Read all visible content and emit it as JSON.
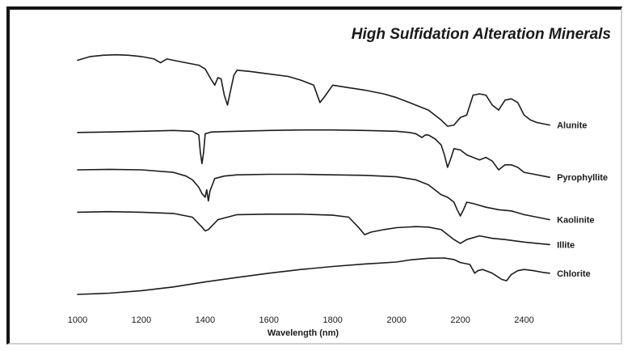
{
  "chart_data": {
    "type": "line",
    "title": "High Sulfidation Alteration Minerals",
    "xlabel": "Wavelength (nm)",
    "ylabel": "",
    "xlim": [
      1000,
      2500
    ],
    "xticks": [
      1000,
      1200,
      1400,
      1600,
      1800,
      2000,
      2200,
      2400
    ],
    "grid": false,
    "legend": "labels at right end of each series",
    "series": [
      {
        "name": "Alunite",
        "points": [
          [
            1000,
            0.94
          ],
          [
            1040,
            0.955
          ],
          [
            1080,
            0.96
          ],
          [
            1120,
            0.962
          ],
          [
            1160,
            0.96
          ],
          [
            1200,
            0.955
          ],
          [
            1240,
            0.945
          ],
          [
            1260,
            0.93
          ],
          [
            1280,
            0.945
          ],
          [
            1300,
            0.94
          ],
          [
            1340,
            0.93
          ],
          [
            1380,
            0.92
          ],
          [
            1400,
            0.905
          ],
          [
            1420,
            0.86
          ],
          [
            1430,
            0.84
          ],
          [
            1440,
            0.87
          ],
          [
            1450,
            0.865
          ],
          [
            1460,
            0.8
          ],
          [
            1470,
            0.76
          ],
          [
            1480,
            0.82
          ],
          [
            1490,
            0.88
          ],
          [
            1500,
            0.9
          ],
          [
            1540,
            0.895
          ],
          [
            1600,
            0.885
          ],
          [
            1660,
            0.875
          ],
          [
            1700,
            0.86
          ],
          [
            1740,
            0.84
          ],
          [
            1760,
            0.77
          ],
          [
            1775,
            0.795
          ],
          [
            1800,
            0.84
          ],
          [
            1850,
            0.83
          ],
          [
            1900,
            0.82
          ],
          [
            1960,
            0.805
          ],
          [
            2000,
            0.79
          ],
          [
            2040,
            0.77
          ],
          [
            2080,
            0.75
          ],
          [
            2100,
            0.74
          ],
          [
            2120,
            0.72
          ],
          [
            2140,
            0.7
          ],
          [
            2160,
            0.675
          ],
          [
            2180,
            0.68
          ],
          [
            2200,
            0.71
          ],
          [
            2220,
            0.72
          ],
          [
            2240,
            0.8
          ],
          [
            2260,
            0.805
          ],
          [
            2280,
            0.8
          ],
          [
            2300,
            0.76
          ],
          [
            2320,
            0.74
          ],
          [
            2340,
            0.78
          ],
          [
            2360,
            0.785
          ],
          [
            2380,
            0.77
          ],
          [
            2400,
            0.72
          ],
          [
            2420,
            0.7
          ],
          [
            2440,
            0.69
          ],
          [
            2480,
            0.68
          ]
        ]
      },
      {
        "name": "Pyrophyllite",
        "points": [
          [
            1000,
            0.65
          ],
          [
            1100,
            0.652
          ],
          [
            1200,
            0.655
          ],
          [
            1300,
            0.658
          ],
          [
            1360,
            0.655
          ],
          [
            1380,
            0.64
          ],
          [
            1385,
            0.57
          ],
          [
            1390,
            0.525
          ],
          [
            1395,
            0.57
          ],
          [
            1400,
            0.645
          ],
          [
            1420,
            0.652
          ],
          [
            1500,
            0.655
          ],
          [
            1600,
            0.658
          ],
          [
            1700,
            0.66
          ],
          [
            1800,
            0.66
          ],
          [
            1900,
            0.658
          ],
          [
            2000,
            0.655
          ],
          [
            2040,
            0.65
          ],
          [
            2060,
            0.645
          ],
          [
            2080,
            0.63
          ],
          [
            2090,
            0.64
          ],
          [
            2100,
            0.64
          ],
          [
            2120,
            0.625
          ],
          [
            2140,
            0.6
          ],
          [
            2150,
            0.56
          ],
          [
            2160,
            0.51
          ],
          [
            2170,
            0.545
          ],
          [
            2180,
            0.585
          ],
          [
            2200,
            0.58
          ],
          [
            2220,
            0.56
          ],
          [
            2240,
            0.55
          ],
          [
            2260,
            0.54
          ],
          [
            2280,
            0.55
          ],
          [
            2300,
            0.535
          ],
          [
            2320,
            0.5
          ],
          [
            2340,
            0.52
          ],
          [
            2360,
            0.52
          ],
          [
            2380,
            0.51
          ],
          [
            2400,
            0.49
          ],
          [
            2420,
            0.485
          ],
          [
            2480,
            0.47
          ]
        ]
      },
      {
        "name": "Kaolinite",
        "points": [
          [
            1000,
            0.5
          ],
          [
            1100,
            0.502
          ],
          [
            1200,
            0.5
          ],
          [
            1300,
            0.49
          ],
          [
            1340,
            0.475
          ],
          [
            1360,
            0.46
          ],
          [
            1380,
            0.43
          ],
          [
            1390,
            0.405
          ],
          [
            1400,
            0.39
          ],
          [
            1405,
            0.42
          ],
          [
            1410,
            0.375
          ],
          [
            1415,
            0.415
          ],
          [
            1430,
            0.465
          ],
          [
            1460,
            0.475
          ],
          [
            1500,
            0.48
          ],
          [
            1600,
            0.482
          ],
          [
            1700,
            0.482
          ],
          [
            1800,
            0.48
          ],
          [
            1900,
            0.478
          ],
          [
            2000,
            0.472
          ],
          [
            2060,
            0.46
          ],
          [
            2100,
            0.44
          ],
          [
            2140,
            0.4
          ],
          [
            2160,
            0.39
          ],
          [
            2180,
            0.37
          ],
          [
            2190,
            0.34
          ],
          [
            2200,
            0.315
          ],
          [
            2210,
            0.34
          ],
          [
            2220,
            0.37
          ],
          [
            2240,
            0.365
          ],
          [
            2280,
            0.35
          ],
          [
            2320,
            0.34
          ],
          [
            2360,
            0.335
          ],
          [
            2400,
            0.32
          ],
          [
            2440,
            0.31
          ],
          [
            2480,
            0.3
          ]
        ]
      },
      {
        "name": "Illite",
        "points": [
          [
            1000,
            0.33
          ],
          [
            1100,
            0.332
          ],
          [
            1200,
            0.33
          ],
          [
            1300,
            0.325
          ],
          [
            1360,
            0.31
          ],
          [
            1390,
            0.27
          ],
          [
            1400,
            0.255
          ],
          [
            1410,
            0.26
          ],
          [
            1440,
            0.3
          ],
          [
            1500,
            0.32
          ],
          [
            1600,
            0.322
          ],
          [
            1700,
            0.322
          ],
          [
            1800,
            0.318
          ],
          [
            1850,
            0.31
          ],
          [
            1880,
            0.27
          ],
          [
            1900,
            0.24
          ],
          [
            1920,
            0.25
          ],
          [
            1960,
            0.26
          ],
          [
            2000,
            0.268
          ],
          [
            2060,
            0.272
          ],
          [
            2100,
            0.27
          ],
          [
            2140,
            0.26
          ],
          [
            2180,
            0.22
          ],
          [
            2200,
            0.205
          ],
          [
            2220,
            0.22
          ],
          [
            2260,
            0.235
          ],
          [
            2300,
            0.225
          ],
          [
            2340,
            0.22
          ],
          [
            2400,
            0.21
          ],
          [
            2440,
            0.205
          ],
          [
            2480,
            0.2
          ]
        ]
      },
      {
        "name": "Chlorite",
        "points": [
          [
            1000,
            0.0
          ],
          [
            1100,
            0.005
          ],
          [
            1200,
            0.015
          ],
          [
            1300,
            0.03
          ],
          [
            1400,
            0.05
          ],
          [
            1500,
            0.068
          ],
          [
            1600,
            0.085
          ],
          [
            1700,
            0.1
          ],
          [
            1800,
            0.112
          ],
          [
            1900,
            0.122
          ],
          [
            2000,
            0.13
          ],
          [
            2040,
            0.138
          ],
          [
            2100,
            0.145
          ],
          [
            2150,
            0.146
          ],
          [
            2180,
            0.14
          ],
          [
            2200,
            0.128
          ],
          [
            2230,
            0.12
          ],
          [
            2245,
            0.085
          ],
          [
            2255,
            0.095
          ],
          [
            2270,
            0.1
          ],
          [
            2300,
            0.085
          ],
          [
            2330,
            0.06
          ],
          [
            2345,
            0.055
          ],
          [
            2360,
            0.08
          ],
          [
            2380,
            0.095
          ],
          [
            2400,
            0.1
          ],
          [
            2430,
            0.095
          ],
          [
            2460,
            0.088
          ],
          [
            2480,
            0.085
          ]
        ]
      }
    ]
  }
}
